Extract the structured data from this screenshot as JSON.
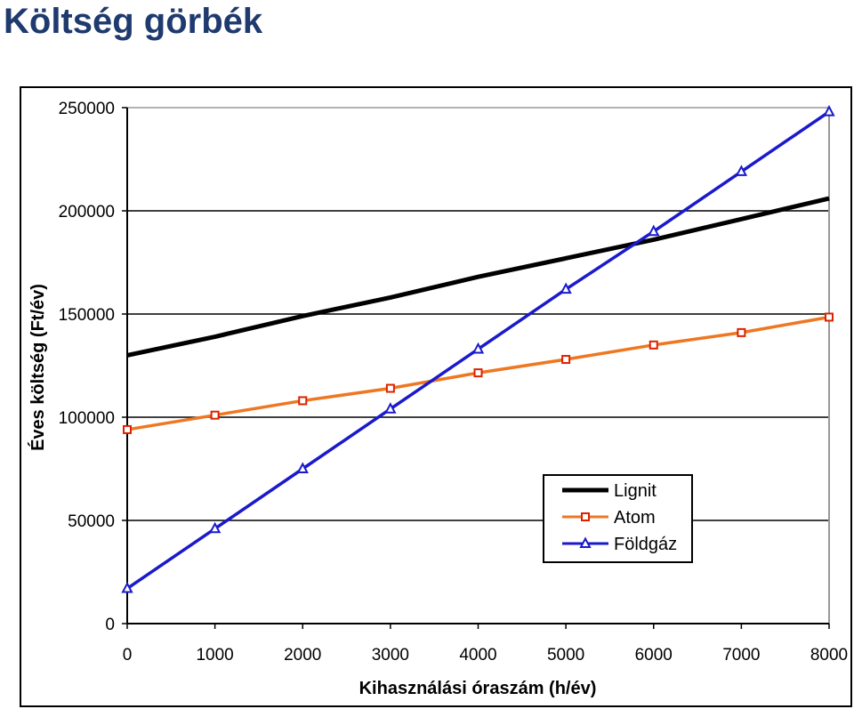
{
  "page": {
    "title": "Költség görbék"
  },
  "colors": {
    "title": "#1f3a6e",
    "Lignit": "#000000",
    "Atom": "#ee7722",
    "Atom_marker": "#dd2200",
    "Földgáz": "#1a1acc",
    "gridline": "#000000",
    "plot_border": "#999999"
  },
  "chart_data": {
    "type": "line",
    "title": "",
    "xlabel": "Kihasználási óraszám (h/év)",
    "ylabel": "Éves költség (Ft/év)",
    "xlim": [
      0,
      8000
    ],
    "ylim": [
      0,
      250000
    ],
    "x": [
      0,
      1000,
      2000,
      3000,
      4000,
      5000,
      6000,
      7000,
      8000
    ],
    "x_ticks": [
      "0",
      "1000",
      "2000",
      "3000",
      "4000",
      "5000",
      "6000",
      "7000",
      "8000"
    ],
    "y_ticks": [
      "0",
      "50000",
      "100000",
      "150000",
      "200000",
      "250000"
    ],
    "grid": "horizontal",
    "legend_position": "lower-right",
    "series": [
      {
        "name": "Lignit",
        "marker": "none",
        "values": [
          130000,
          139000,
          149000,
          158000,
          168000,
          177000,
          186000,
          196000,
          206000
        ]
      },
      {
        "name": "Atom",
        "marker": "square",
        "values": [
          94000,
          101000,
          108000,
          114000,
          121500,
          128000,
          135000,
          141000,
          148500
        ]
      },
      {
        "name": "Földgáz",
        "marker": "triangle",
        "values": [
          17000,
          46000,
          75000,
          104000,
          133000,
          162000,
          190000,
          219000,
          248000
        ]
      }
    ]
  }
}
